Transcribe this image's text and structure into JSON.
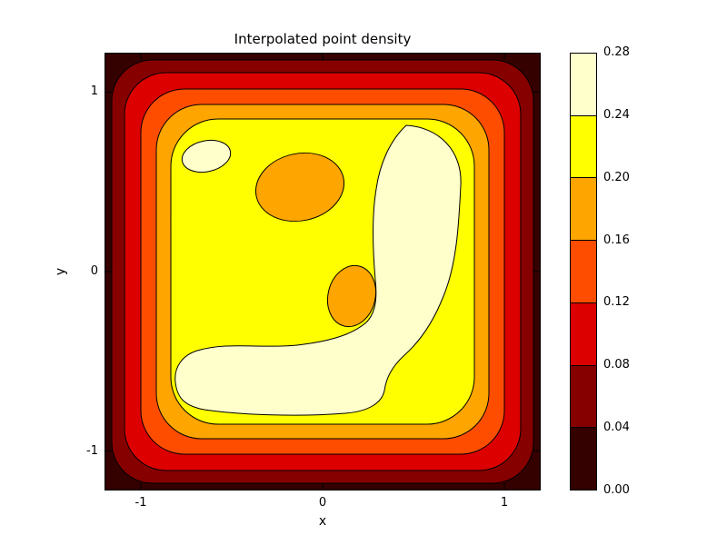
{
  "title": "Interpolated point density",
  "chart_data": {
    "type": "heatmap",
    "subtype": "filled_contour",
    "title": "Interpolated point density",
    "xlabel": "x",
    "ylabel": "y",
    "xlim": [
      -1.2,
      1.2
    ],
    "ylim": [
      -1.22,
      1.22
    ],
    "x_ticks": [
      -1,
      0,
      1
    ],
    "y_ticks": [
      -1,
      0,
      1
    ],
    "x_tick_labels": [
      "-1",
      "0",
      "1"
    ],
    "y_tick_labels": [
      "-1",
      "0",
      "1"
    ],
    "grid": false,
    "legend_position": "right-colorbar",
    "levels": [
      0.0,
      0.04,
      0.08,
      0.12,
      0.16,
      0.2,
      0.24,
      0.28
    ],
    "colorbar_tick_labels": [
      "0.00",
      "0.04",
      "0.08",
      "0.12",
      "0.16",
      "0.20",
      "0.24",
      "0.28"
    ],
    "colors": [
      "#350000",
      "#870000",
      "#dd0000",
      "#ff4d00",
      "#ffa500",
      "#ffff00",
      "#ffffcc"
    ],
    "features": [
      {
        "band": "0.24-0.28",
        "shape": "large C-shaped region",
        "location": "right side curving into bottom of plot"
      },
      {
        "band": "0.24-0.28",
        "shape": "small oval",
        "location": "upper left, near (-0.64, 0.64)"
      },
      {
        "band": "0.16-0.20",
        "shape": "blob inside yellow region",
        "location": "near (-0.13, 0.48)"
      },
      {
        "band": "0.16-0.20",
        "shape": "blob inside yellow region",
        "location": "near (0.16, -0.13)"
      },
      {
        "band": "gradient",
        "shape": "concentric rounded-square bands",
        "location": "density falls from ~0.26 in interior to ~0.00 at the corners/edges"
      }
    ]
  }
}
